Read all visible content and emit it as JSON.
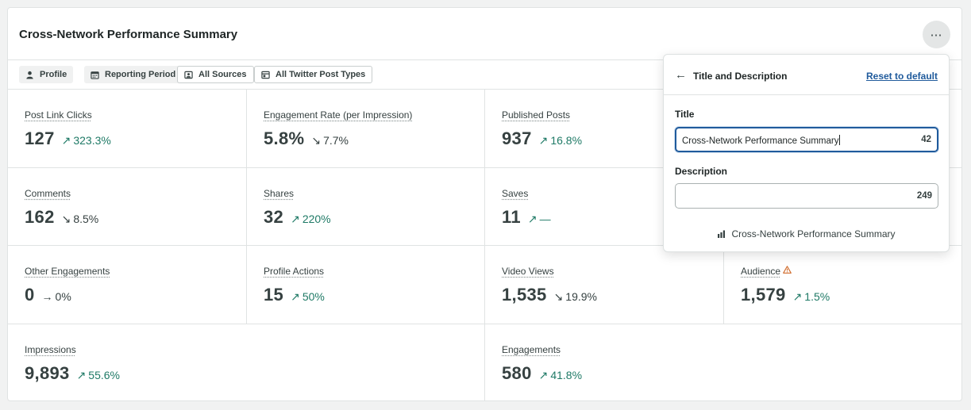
{
  "header": {
    "title": "Cross-Network Performance Summary",
    "more_icon": "more-horizontal-icon",
    "more_glyph": "⋯"
  },
  "filters": [
    {
      "label": "Profile",
      "icon": "person-icon",
      "style": "filled"
    },
    {
      "label": "Reporting Period",
      "icon": "calendar-icon",
      "style": "filled"
    },
    {
      "label": "All Sources",
      "icon": "source-icon",
      "style": "outlined"
    },
    {
      "label": "All Twitter Post Types",
      "icon": "post-type-icon",
      "style": "outlined"
    }
  ],
  "metrics": [
    {
      "label": "Post Link Clicks",
      "value": "127",
      "change": "323.3%",
      "direction": "up",
      "arrow": "↗"
    },
    {
      "label": "Engagement Rate (per Impression)",
      "value": "5.8%",
      "change": "7.7%",
      "direction": "down",
      "arrow": "↘"
    },
    {
      "label": "Published Posts",
      "value": "937",
      "change": "16.8%",
      "direction": "up",
      "arrow": "↗"
    },
    {
      "label": "Comments",
      "value": "162",
      "change": "8.5%",
      "direction": "down",
      "arrow": "↘"
    },
    {
      "label": "Shares",
      "value": "32",
      "change": "220%",
      "direction": "up",
      "arrow": "↗"
    },
    {
      "label": "Saves",
      "value": "11",
      "change": "—",
      "direction": "up",
      "arrow": "↗"
    },
    {
      "label": "Other Engagements",
      "value": "0",
      "change": "0%",
      "direction": "flat",
      "arrow": "→"
    },
    {
      "label": "Profile Actions",
      "value": "15",
      "change": "50%",
      "direction": "up",
      "arrow": "↗"
    },
    {
      "label": "Video Views",
      "value": "1,535",
      "change": "19.9%",
      "direction": "down",
      "arrow": "↘"
    },
    {
      "label": "Audience",
      "value": "1,579",
      "change": "1.5%",
      "direction": "up",
      "arrow": "↗",
      "warning_icon": "warning-triangle-icon"
    },
    {
      "label": "Impressions",
      "value": "9,893",
      "change": "55.6%",
      "direction": "up",
      "arrow": "↗"
    },
    {
      "label": "Engagements",
      "value": "580",
      "change": "41.8%",
      "direction": "up",
      "arrow": "↗"
    }
  ],
  "popover": {
    "back_icon": "arrow-left-icon",
    "back_glyph": "←",
    "title": "Title and Description",
    "reset_label": "Reset to default",
    "title_field": {
      "label": "Title",
      "value": "Cross-Network Performance Summary",
      "counter": "42"
    },
    "description_field": {
      "label": "Description",
      "value": "",
      "counter": "249"
    },
    "preview_icon": "bar-chart-icon",
    "preview_text": "Cross-Network Performance Summary"
  },
  "colors": {
    "positive": "#1f7a66",
    "neutral": "#364141",
    "link": "#205b9c",
    "warning": "#d06a2a"
  }
}
